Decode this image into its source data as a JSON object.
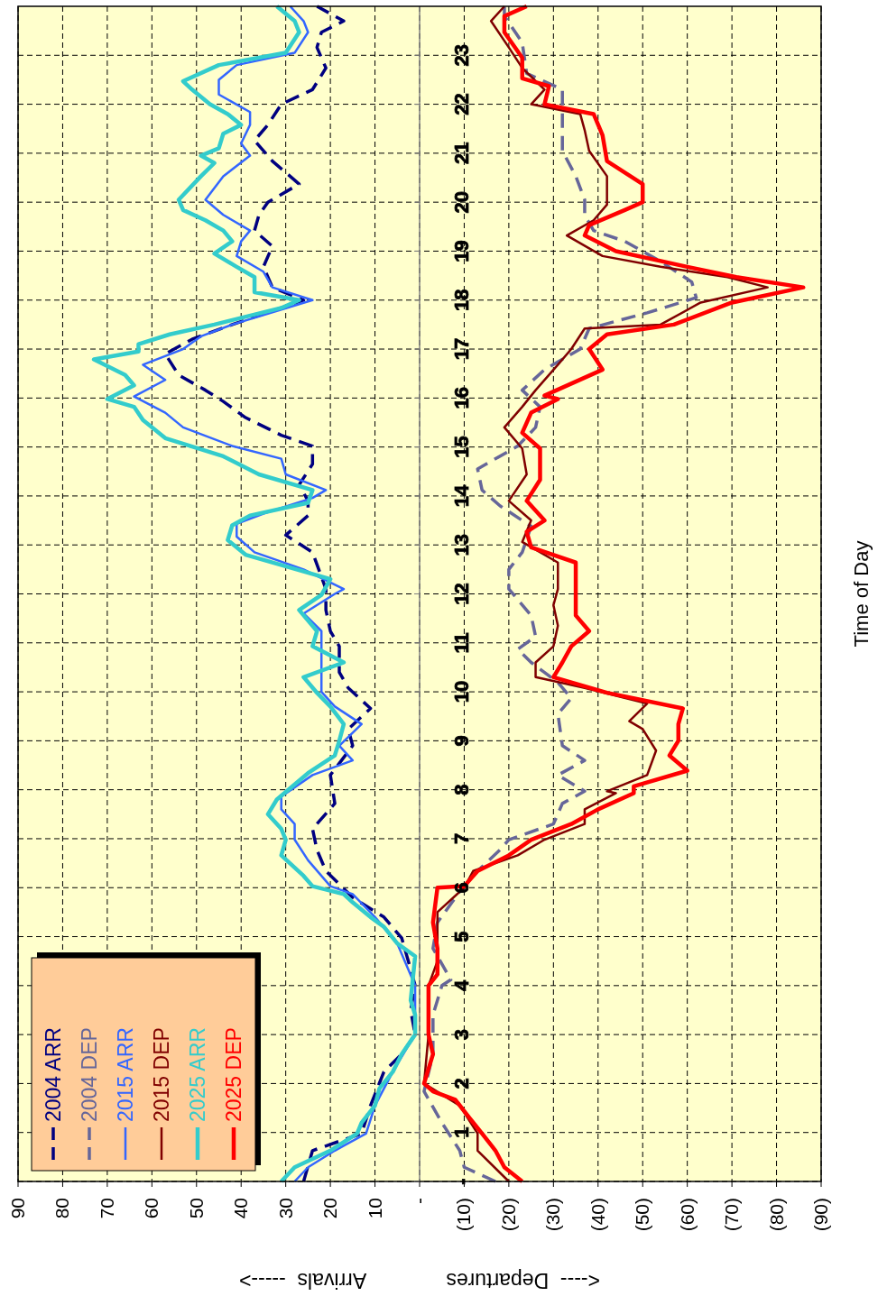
{
  "chart_data": {
    "type": "line",
    "xlabel": "<----  Departures              Arrivals  ----->",
    "ylabel": "Time of Day",
    "xlim": [
      90,
      -90
    ],
    "xticks": [
      90,
      80,
      70,
      60,
      50,
      40,
      30,
      20,
      10,
      {
        "value": 0,
        "label": "-"
      },
      {
        "value": -10,
        "label": "(10)"
      },
      {
        "value": -20,
        "label": "(20)"
      },
      {
        "value": -30,
        "label": "(30)"
      },
      {
        "value": -40,
        "label": "(40)"
      },
      {
        "value": -50,
        "label": "(50)"
      },
      {
        "value": -60,
        "label": "(60)"
      },
      {
        "value": -70,
        "label": "(70)"
      },
      {
        "value": -80,
        "label": "(80)"
      },
      {
        "value": -90,
        "label": "(90)"
      }
    ],
    "ylim": [
      0,
      24
    ],
    "yticks": [
      {
        "value": 0,
        "label": "-"
      },
      1,
      2,
      3,
      4,
      5,
      6,
      7,
      8,
      9,
      10,
      11,
      12,
      13,
      14,
      15,
      16,
      17,
      18,
      19,
      20,
      21,
      22,
      23
    ],
    "grid": true,
    "legend": "bottom left",
    "series": [
      {
        "name": "2004 ARR",
        "color": "#000080",
        "line_style": "dashed",
        "values": [
          0,
          0.63,
          0.98,
          1.55,
          2.24,
          2.6,
          3,
          3.5,
          4,
          4.33,
          4.97,
          5.4,
          5.8,
          6.34,
          6.77,
          7.2,
          7.72,
          8.3,
          8.9,
          9.24,
          9.66,
          10.08,
          10.4,
          10.93,
          11.24,
          11.67,
          12.1,
          12.85,
          13.2,
          13.6,
          13.9,
          14.23,
          14.65,
          15.02,
          15.24,
          15.6,
          15.93,
          16.16,
          16.47,
          16.9,
          17.2,
          17.5,
          18,
          18.26,
          18.68,
          19.1,
          19.42,
          19.74,
          20,
          20.37,
          20.84,
          21.26,
          21.58,
          22,
          22.3,
          22.74,
          23.16,
          23.47,
          23.7,
          24
        ],
        "x": [
          26,
          24,
          13,
          11,
          8,
          4,
          1,
          2,
          1,
          2,
          4,
          8,
          15,
          21,
          23,
          24,
          19,
          20,
          15,
          16,
          11,
          16,
          18,
          18,
          20,
          21,
          21,
          24,
          30,
          25,
          25,
          27,
          24,
          24,
          31,
          39,
          44,
          48,
          54,
          57,
          51,
          42,
          26,
          33,
          35,
          33,
          37,
          36,
          34,
          27,
          33,
          37,
          34,
          31,
          24,
          21,
          23,
          22,
          17,
          23
        ]
      },
      {
        "name": "2004 DEP",
        "color": "#666699",
        "line_style": "dashed",
        "values": [
          0,
          0.29,
          0.63,
          1.2,
          1.84,
          2.6,
          3.4,
          4,
          4.12,
          4.76,
          5.29,
          5.92,
          6.34,
          6.77,
          6.98,
          7.3,
          7.72,
          7.97,
          8.3,
          8.6,
          8.9,
          9.55,
          9.87,
          10.19,
          10.6,
          10.87,
          11.13,
          11.56,
          12.1,
          12.5,
          12.85,
          13.38,
          13.8,
          14.12,
          14.55,
          15.02,
          15.4,
          15.82,
          16.16,
          16.58,
          17,
          17.42,
          17.74,
          18.05,
          18.37,
          18.79,
          19.2,
          19.42,
          19.74,
          20.05,
          20.53,
          21.05,
          21.42,
          21.68,
          22.3,
          22.63,
          23.26,
          23.8,
          24
        ],
        "x": [
          -17,
          -10,
          -9,
          -5,
          -1,
          -3,
          -3,
          -5,
          -7,
          -3,
          -4,
          -9,
          -13,
          -18,
          -20,
          -30,
          -32,
          -37,
          -31,
          -37,
          -32,
          -31,
          -34,
          -31,
          -25,
          -22,
          -26,
          -25,
          -20,
          -20,
          -23,
          -25,
          -18,
          -14,
          -13,
          -22,
          -26,
          -27,
          -23,
          -28,
          -36,
          -38,
          -51,
          -62,
          -61,
          -54,
          -46,
          -39,
          -37,
          -37,
          -35,
          -32,
          -32,
          -32,
          -32,
          -24,
          -23,
          -19,
          -19
        ]
      },
      {
        "name": "2015 ARR",
        "color": "#3366ff",
        "line_style": "solid",
        "values": [
          0,
          0.29,
          0.63,
          0.98,
          1.55,
          2.24,
          2.7,
          3,
          3.5,
          4,
          4.86,
          5.4,
          5.87,
          6.03,
          6.56,
          6.98,
          7.3,
          7.6,
          7.86,
          8.3,
          8.6,
          8.9,
          9.34,
          9.7,
          10,
          10.4,
          10.82,
          11.24,
          11.6,
          12,
          12.1,
          12.5,
          12.85,
          13.17,
          13.43,
          13.64,
          13.96,
          14.12,
          14.44,
          14.76,
          15.02,
          15.4,
          15.7,
          16.03,
          16.37,
          16.68,
          17,
          17.26,
          17.5,
          18,
          18.26,
          18.58,
          18.9,
          19.2,
          19.42,
          19.74,
          20.05,
          20.53,
          20.95,
          21.2,
          21.58,
          21.84,
          22.2,
          22.5,
          22.8,
          23.05,
          23.47,
          23.7,
          24
        ],
        "x": [
          28,
          25,
          19,
          12,
          10,
          6,
          3,
          1,
          1,
          1,
          5,
          10,
          15,
          20,
          25,
          28,
          28,
          31,
          31,
          24,
          15,
          18,
          13,
          19,
          22,
          22,
          22,
          22,
          26,
          19,
          17,
          26,
          37,
          41,
          41,
          35,
          24,
          21,
          30,
          31,
          42,
          53,
          57,
          64,
          57,
          62,
          53,
          49,
          42,
          24,
          33,
          35,
          41,
          40,
          38,
          44,
          48,
          44,
          38,
          40,
          38,
          38,
          45,
          45,
          41,
          28,
          25,
          26,
          29
        ]
      },
      {
        "name": "2015 DEP",
        "color": "#800000",
        "line_style": "solid",
        "values": [
          0,
          0.63,
          0.98,
          1.55,
          2,
          3,
          4,
          4.5,
          5.5,
          6,
          6.34,
          6.66,
          6.98,
          7.3,
          7.6,
          7.93,
          7.97,
          8.3,
          8.8,
          9.24,
          9.4,
          9.76,
          10.08,
          10.3,
          10.6,
          10.93,
          11.35,
          11.77,
          12.1,
          12.64,
          13.06,
          13.5,
          13.9,
          14.44,
          14.97,
          15.4,
          15.82,
          16.16,
          16.68,
          17,
          17.42,
          17.5,
          17.95,
          18.26,
          18.47,
          18.68,
          18.9,
          19.32,
          19.63,
          19.95,
          20.53,
          21.05,
          21.47,
          21.8,
          22,
          22.3,
          22.74,
          23.16,
          23.7,
          24
        ],
        "x": [
          -20,
          -13,
          -13,
          -9,
          -1,
          -2,
          -2,
          -4,
          -4,
          -10,
          -12,
          -22,
          -28,
          -37,
          -37,
          -44,
          -42,
          -51,
          -53,
          -50,
          -47,
          -51,
          -37,
          -26,
          -26,
          -30,
          -31,
          -30,
          -31,
          -31,
          -23,
          -25,
          -20,
          -24,
          -23,
          -19,
          -23,
          -26,
          -31,
          -34,
          -37,
          -54,
          -63,
          -78,
          -69,
          -54,
          -41,
          -33,
          -39,
          -42,
          -42,
          -38,
          -37,
          -36,
          -25,
          -28,
          -23,
          -20,
          -16,
          -19
        ]
      },
      {
        "name": "2025 ARR",
        "color": "#33cccc",
        "line_style": "solid",
        "values": [
          0,
          0.29,
          0.63,
          0.98,
          1.2,
          1.55,
          1.9,
          2.24,
          2.6,
          3,
          3.4,
          3.7,
          4.6,
          4.86,
          5.2,
          5.4,
          5.7,
          5.87,
          6.03,
          6.24,
          6.66,
          6.98,
          7.2,
          7.5,
          7.8,
          8.34,
          8.7,
          9,
          9.34,
          9.7,
          9.98,
          10.3,
          10.6,
          10.93,
          11.24,
          11.67,
          11.98,
          12.3,
          12.8,
          13.1,
          13.4,
          13.6,
          13.86,
          14.12,
          14.44,
          14.81,
          15.18,
          15.55,
          15.82,
          15.98,
          16.26,
          16.47,
          16.79,
          16.95,
          17.1,
          17.3,
          17.5,
          17.84,
          18,
          18.16,
          18.47,
          18.68,
          18.95,
          19.2,
          19.42,
          19.63,
          19.84,
          20.05,
          20.53,
          20.8,
          20.95,
          21.1,
          21.4,
          21.58,
          21.8,
          22,
          22.3,
          22.47,
          22.8,
          23.05,
          23.47,
          23.7,
          24
        ],
        "x": [
          31,
          28,
          20,
          14,
          13,
          10,
          9,
          6,
          4,
          1,
          1,
          2,
          1,
          5,
          8,
          11,
          15,
          17,
          24,
          26,
          31,
          30,
          31,
          34,
          32,
          25,
          19,
          18,
          17,
          20,
          23,
          26,
          17,
          24,
          23,
          27,
          22,
          20,
          39,
          43,
          42,
          38,
          25,
          24,
          36,
          44,
          57,
          62,
          64,
          70,
          64,
          66,
          73,
          63,
          63,
          56,
          46,
          31,
          27,
          37,
          37,
          41,
          46,
          42,
          44,
          48,
          53,
          54,
          49,
          46,
          49,
          45,
          44,
          40,
          43,
          47,
          51,
          53,
          45,
          30,
          27,
          28,
          32
        ]
      },
      {
        "name": "2025 DEP",
        "color": "#ff0000",
        "line_style": "solid",
        "values": [
          0,
          0.29,
          0.63,
          0.98,
          1.32,
          1.67,
          1.84,
          2,
          2.6,
          3,
          3.4,
          4,
          4.23,
          4.76,
          5.29,
          6,
          6.03,
          6.34,
          6.66,
          6.98,
          7.3,
          7.6,
          7.93,
          8.07,
          8.39,
          8.7,
          9,
          9.34,
          9.66,
          9.98,
          10.3,
          10.6,
          10.93,
          11.24,
          11.56,
          12,
          12.64,
          12.95,
          13.27,
          13.5,
          13.9,
          14.33,
          14.97,
          15.29,
          15.7,
          15.98,
          16.05,
          16.58,
          17,
          17.3,
          17.5,
          17.95,
          18.26,
          18.47,
          18.68,
          19,
          19.32,
          19.53,
          19.84,
          20,
          20.37,
          20.84,
          21.37,
          21.8,
          22,
          22.37,
          22.53,
          22.95,
          23.47,
          23.8,
          24
        ],
        "x": [
          -23,
          -19,
          -17,
          -14,
          -11,
          -8,
          -3,
          -1,
          -3,
          -2,
          -2,
          -2,
          -4,
          -4,
          -3,
          -4,
          -10,
          -13,
          -20,
          -25,
          -34,
          -40,
          -48,
          -48,
          -60,
          -56,
          -58,
          -58,
          -59,
          -42,
          -30,
          -32,
          -34,
          -38,
          -35,
          -35,
          -35,
          -25,
          -24,
          -28,
          -24,
          -27,
          -27,
          -23,
          -25,
          -31,
          -28,
          -41,
          -38,
          -42,
          -57,
          -70,
          -86,
          -71,
          -60,
          -44,
          -37,
          -38,
          -46,
          -50,
          -50,
          -42,
          -41,
          -39,
          -28,
          -29,
          -23,
          -23,
          -19,
          -19,
          -24
        ]
      }
    ]
  }
}
